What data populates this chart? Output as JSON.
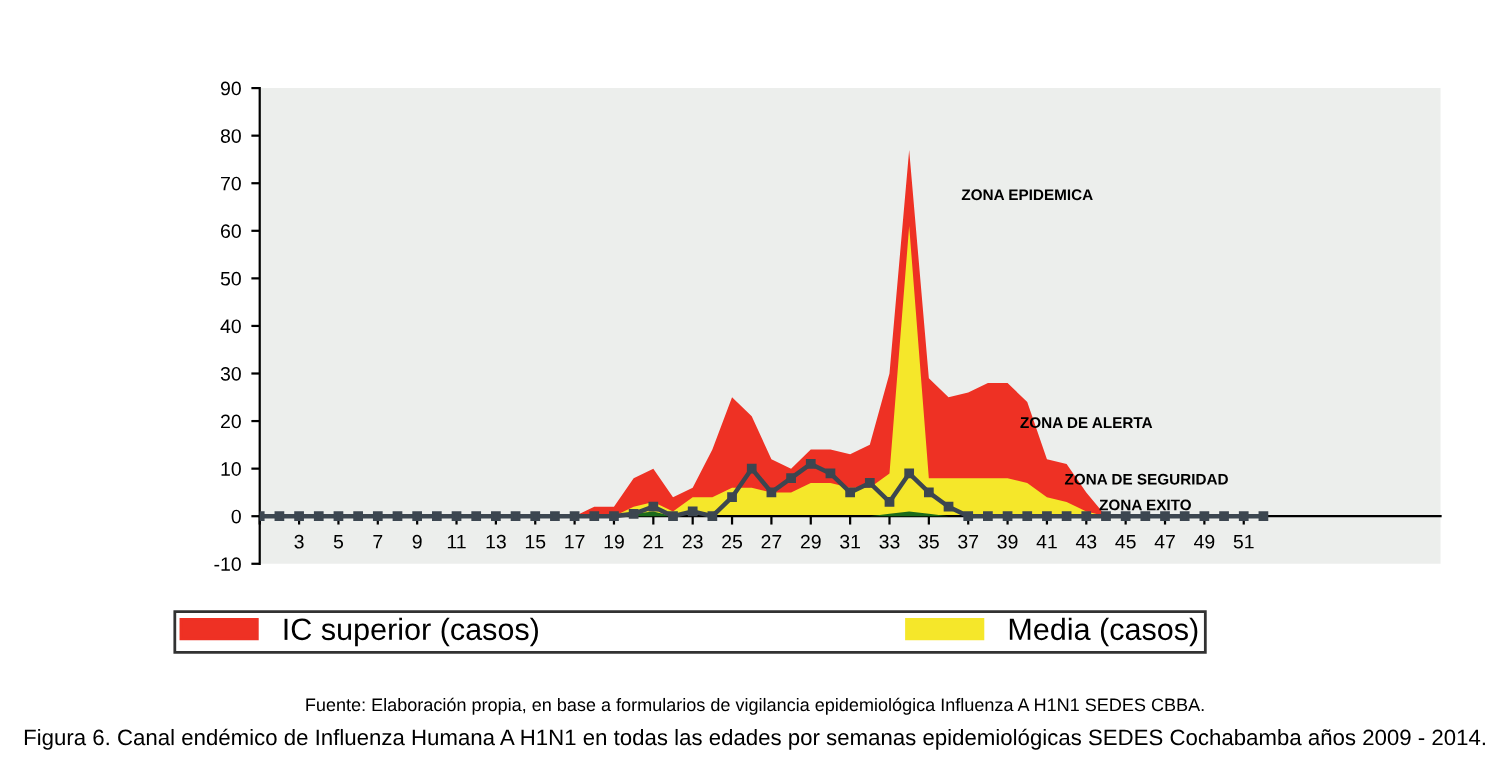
{
  "chart_data": {
    "type": "area",
    "x": [
      1,
      2,
      3,
      4,
      5,
      6,
      7,
      8,
      9,
      10,
      11,
      12,
      13,
      14,
      15,
      16,
      17,
      18,
      19,
      20,
      21,
      22,
      23,
      24,
      25,
      26,
      27,
      28,
      29,
      30,
      31,
      32,
      33,
      34,
      35,
      36,
      37,
      38,
      39,
      40,
      41,
      42,
      43,
      44,
      45,
      46,
      47,
      48,
      49,
      50,
      51,
      52
    ],
    "series": [
      {
        "name": "IC superior (casos)",
        "color": "#ee3124",
        "values": [
          0,
          0,
          0,
          0,
          0,
          0,
          0,
          0,
          0,
          0,
          0,
          0,
          0,
          0,
          0,
          0,
          0,
          2,
          2,
          8,
          10,
          4,
          6,
          14,
          25,
          21,
          12,
          10,
          14,
          14,
          13,
          15,
          30,
          77,
          29,
          25,
          26,
          28,
          28,
          24,
          12,
          11,
          5,
          0,
          0,
          0,
          0,
          0,
          0,
          0,
          0,
          0
        ]
      },
      {
        "name": "Media (casos)",
        "color": "#f5e72a",
        "values": [
          0,
          0,
          0,
          0,
          0,
          0,
          0,
          0,
          0,
          0,
          0,
          0,
          0,
          0,
          0,
          0,
          0,
          0,
          0,
          2,
          3,
          1,
          4,
          4,
          6,
          6,
          5,
          5,
          7,
          7,
          6,
          6,
          9,
          61,
          8,
          8,
          8,
          8,
          8,
          7,
          4,
          3,
          1,
          0,
          0,
          0,
          0,
          0,
          0,
          0,
          0,
          0
        ]
      },
      {
        "color": "#1b6b1b",
        "values": [
          0,
          0,
          0,
          0,
          0,
          0,
          0,
          0,
          0,
          0,
          0,
          0,
          0,
          0,
          0,
          0,
          0,
          0,
          0,
          0.5,
          1,
          0,
          0,
          0,
          0,
          0,
          0,
          0,
          0,
          0,
          0,
          0,
          0.5,
          1,
          0.5,
          0,
          0,
          0,
          0,
          0,
          0,
          0,
          0,
          0,
          0,
          0,
          0,
          0,
          0,
          0,
          0,
          0
        ]
      },
      {
        "type": "line",
        "color": "#3c4650",
        "marker": "square",
        "values": [
          0,
          0,
          0,
          0,
          0,
          0,
          0,
          0,
          0,
          0,
          0,
          0,
          0,
          0,
          0,
          0,
          0,
          0,
          0,
          0.5,
          2,
          0,
          1,
          0,
          4,
          10,
          5,
          8,
          11,
          9,
          5,
          7,
          3,
          9,
          5,
          2,
          0,
          0,
          0,
          0,
          0,
          0,
          0,
          0,
          0,
          0,
          0,
          0,
          0,
          0,
          0,
          0
        ]
      }
    ],
    "xlim": [
      1,
      61
    ],
    "xticks": [
      {
        "value": 1,
        "label": null
      },
      3,
      5,
      7,
      9,
      11,
      13,
      15,
      17,
      19,
      21,
      23,
      25,
      27,
      29,
      31,
      33,
      35,
      37,
      39,
      41,
      43,
      45,
      47,
      49,
      51
    ],
    "ylim": [
      -10,
      90
    ],
    "yticks": [
      -10,
      0,
      10,
      20,
      30,
      40,
      50,
      60,
      70,
      80,
      90
    ],
    "grid": false,
    "legend": "bottom",
    "annotations": [
      "ZONA EPIDEMICA",
      "ZONA DE ALERTA",
      "ZONA DE SEGURIDAD",
      "ZONA EXITO",
      "Fuente: Elaboración propia, en base a formularios de vigilancia epidemiológica Influenza A H1N1 SEDES CBBA.",
      "Figura 6. Canal endémico de Influenza Humana A H1N1 en todas las edades por semanas epidemiológicas SEDES Cochabamba años 2009 - 2014."
    ]
  }
}
